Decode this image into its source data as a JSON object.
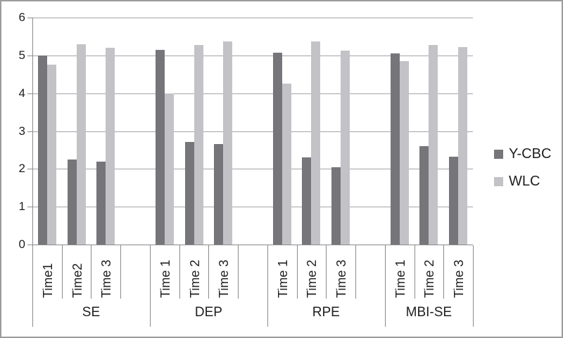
{
  "chart_data": {
    "type": "bar",
    "title": "",
    "xlabel": "",
    "ylabel": "",
    "ylim": [
      0,
      6
    ],
    "yticks": [
      0,
      1,
      2,
      3,
      4,
      5,
      6
    ],
    "grid": true,
    "legend_position": "right",
    "groups": [
      {
        "label": "SE",
        "categories": [
          "Time1",
          "Time2",
          "Time 3"
        ],
        "spacer_after": true
      },
      {
        "label": "DEP",
        "categories": [
          "Time 1",
          "Time 2",
          "Time 3"
        ],
        "spacer_after": true
      },
      {
        "label": "RPE",
        "categories": [
          "Time 1",
          "Time 2",
          "Time 3"
        ],
        "spacer_after": true
      },
      {
        "label": "MBI-SE",
        "categories": [
          "Time 1",
          "Time 2",
          "Time 3"
        ],
        "spacer_after": false
      }
    ],
    "series": [
      {
        "name": "Y-CBC",
        "color": "#76767a",
        "values": [
          5.0,
          2.25,
          2.2,
          5.15,
          2.72,
          2.66,
          5.07,
          2.3,
          2.05,
          5.05,
          2.6,
          2.32
        ]
      },
      {
        "name": "WLC",
        "color": "#c3c3c7",
        "values": [
          4.75,
          5.3,
          5.2,
          4.0,
          5.28,
          5.37,
          4.25,
          5.37,
          5.13,
          4.85,
          5.28,
          5.22
        ]
      }
    ],
    "colors": {
      "grid": "#a5a5a8",
      "axis": "#8b8b8e",
      "frame": "#9c9c9e",
      "text": "#1f1f1f"
    }
  }
}
